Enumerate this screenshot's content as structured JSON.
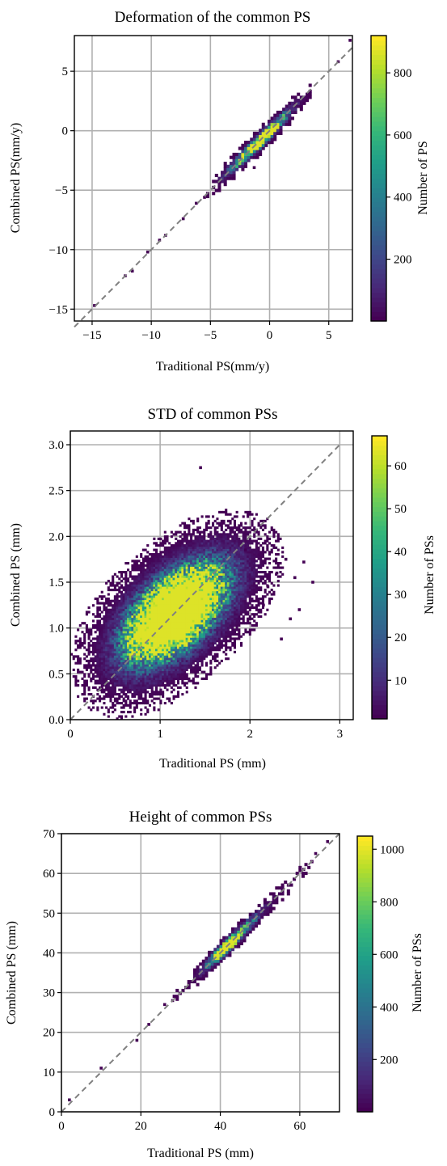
{
  "chart_data": [
    {
      "type": "heatmap",
      "title": "Deformation of the common PS",
      "xlabel": "Traditional PS(mm/y)",
      "ylabel": "Combined PS(mm/y)",
      "xlim": [
        -16.5,
        7
      ],
      "ylim": [
        -16,
        8
      ],
      "xticks": [
        -15,
        -10,
        -5,
        0,
        5
      ],
      "yticks": [
        -15,
        -10,
        -5,
        0,
        5
      ],
      "x_tick_labels": [
        "−15",
        "−10",
        "−5",
        "0",
        "5"
      ],
      "y_tick_labels": [
        "−15",
        "−10",
        "−5",
        "0",
        "5"
      ],
      "grid": true,
      "reference_line": {
        "style": "dashed",
        "color": "#808080",
        "from": [
          -16.5,
          -16.5
        ],
        "to": [
          7,
          7
        ]
      },
      "colorbar": {
        "label": "Number of PS",
        "min": 1,
        "max": 920,
        "ticks": [
          200,
          400,
          600,
          800
        ],
        "colormap": "viridis"
      },
      "density": {
        "core": [
          [
            -3.5,
            -3.5,
            0.25
          ],
          [
            -2.5,
            -2.5,
            0.35
          ],
          [
            -1.5,
            -1.5,
            0.5
          ],
          [
            -0.7,
            -0.8,
            0.85
          ],
          [
            0,
            0,
            0.6
          ],
          [
            0.8,
            0.8,
            0.3
          ],
          [
            1.8,
            1.8,
            0.15
          ],
          [
            2.6,
            2.6,
            0.08
          ]
        ],
        "spread": 0.55,
        "outliers": [
          [
            -14.8,
            -14.7
          ],
          [
            -12.2,
            -12.2
          ],
          [
            -11.6,
            -11.8
          ],
          [
            -10.3,
            -10.2
          ],
          [
            -8.8,
            -8.8
          ],
          [
            -9.3,
            -9.2
          ],
          [
            -7.3,
            -7.4
          ],
          [
            -6.2,
            -6.1
          ],
          [
            -5.5,
            -5.6
          ],
          [
            5.8,
            5.8
          ],
          [
            6.8,
            7.6
          ],
          [
            -4.2,
            -4.3
          ],
          [
            -1.3,
            -3.1
          ]
        ]
      }
    },
    {
      "type": "heatmap",
      "title": "STD of common PSs",
      "xlabel": "Traditional PS (mm)",
      "ylabel": "Combined PS (mm)",
      "xlim": [
        0,
        3.15
      ],
      "ylim": [
        0,
        3.15
      ],
      "xticks": [
        0,
        1,
        2,
        3
      ],
      "yticks": [
        0,
        0.5,
        1,
        1.5,
        2,
        2.5,
        3
      ],
      "x_tick_labels": [
        "0",
        "1",
        "2",
        "3"
      ],
      "y_tick_labels": [
        "0.0",
        "0.5",
        "1.0",
        "1.5",
        "2.0",
        "2.5",
        "3.0"
      ],
      "grid": true,
      "reference_line": {
        "style": "dashed",
        "color": "#808080",
        "from": [
          0,
          0
        ],
        "to": [
          3,
          3
        ]
      },
      "colorbar": {
        "label": "Number of PSs",
        "min": 1,
        "max": 67,
        "ticks": [
          10,
          20,
          30,
          40,
          50,
          60
        ],
        "colormap": "viridis"
      },
      "density": {
        "core": [
          [
            0.75,
            0.75,
            0.35
          ],
          [
            0.95,
            1.0,
            0.7
          ],
          [
            1.15,
            1.15,
            0.85
          ],
          [
            1.3,
            1.3,
            0.6
          ],
          [
            1.5,
            1.45,
            0.4
          ],
          [
            1.7,
            1.6,
            0.2
          ]
        ],
        "spread": 0.14,
        "outliers": [
          [
            1.45,
            2.75
          ],
          [
            2.4,
            1.75
          ],
          [
            2.6,
            1.72
          ],
          [
            2.55,
            1.2
          ],
          [
            2.45,
            1.1
          ],
          [
            2.5,
            1.55
          ],
          [
            2.15,
            1.25
          ],
          [
            2.2,
            1.45
          ],
          [
            2.3,
            1.6
          ],
          [
            2.7,
            1.5
          ],
          [
            2.0,
            1.1
          ],
          [
            2.35,
            0.88
          ],
          [
            1.95,
            1.85
          ]
        ]
      }
    },
    {
      "type": "heatmap",
      "title": "Height of common PSs",
      "xlabel": "Traditional PS (mm)",
      "ylabel": "Combined PS (mm)",
      "xlim": [
        0,
        70
      ],
      "ylim": [
        0,
        70
      ],
      "xticks": [
        0,
        20,
        40,
        60
      ],
      "yticks": [
        0,
        10,
        20,
        30,
        40,
        50,
        60,
        70
      ],
      "x_tick_labels": [
        "0",
        "20",
        "40",
        "60"
      ],
      "y_tick_labels": [
        "0",
        "10",
        "20",
        "30",
        "40",
        "50",
        "60",
        "70"
      ],
      "grid": true,
      "reference_line": {
        "style": "dashed",
        "color": "#808080",
        "from": [
          0,
          0
        ],
        "to": [
          70,
          70
        ]
      },
      "colorbar": {
        "label": "Number of PSs",
        "min": 1,
        "max": 1050,
        "ticks": [
          200,
          400,
          600,
          800,
          1000
        ],
        "colormap": "viridis"
      },
      "density": {
        "core": [
          [
            40,
            40,
            0.9
          ],
          [
            42,
            42,
            0.6
          ],
          [
            44,
            44,
            0.4
          ],
          [
            46,
            46,
            0.3
          ],
          [
            48,
            48,
            0.25
          ],
          [
            52,
            52,
            0.12
          ],
          [
            56,
            56,
            0.08
          ],
          [
            60,
            60,
            0.05
          ],
          [
            35,
            35,
            0.1
          ],
          [
            30,
            30,
            0.06
          ]
        ],
        "spread": 1.6,
        "outliers": [
          [
            2,
            3
          ],
          [
            10,
            11
          ],
          [
            19,
            18
          ],
          [
            22,
            22
          ],
          [
            26,
            27
          ],
          [
            28,
            28
          ],
          [
            64,
            65
          ],
          [
            67,
            68
          ],
          [
            61,
            61
          ]
        ]
      }
    }
  ]
}
